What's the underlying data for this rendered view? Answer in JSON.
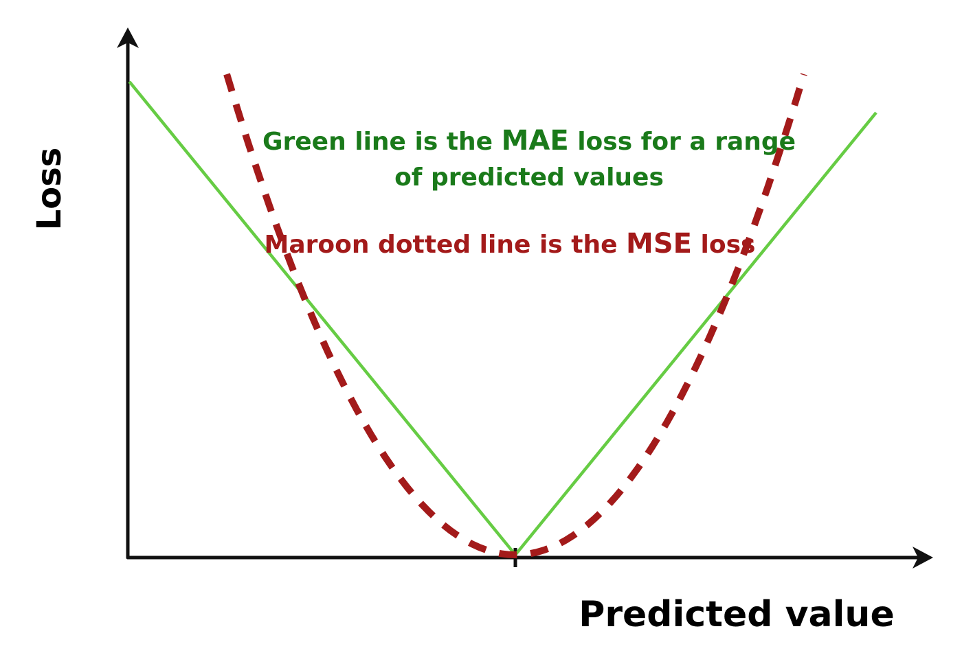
{
  "chart_data": {
    "type": "line",
    "xlabel": "Predicted value",
    "ylabel": "Loss",
    "grid": false,
    "ticks": {
      "x_marks": 1,
      "y_marks": 0
    },
    "annotations": {
      "mae_line1_a": "Green line is the ",
      "mae_line1_bold": "MAE",
      "mae_line1_b": " loss for a range",
      "mae_line2": "of predicted values",
      "mse_a": "Maroon dotted line is the ",
      "mse_bold": "MSE",
      "mse_b": " loss"
    },
    "x": [
      -1,
      -0.75,
      -0.5,
      -0.25,
      0,
      0.25,
      0.5,
      0.75,
      1
    ],
    "series": [
      {
        "key": "mae",
        "style": "solid",
        "color": "#66cc44",
        "values": [
          1,
          0.75,
          0.5,
          0.25,
          0,
          0.25,
          0.5,
          0.75,
          1
        ]
      },
      {
        "key": "mse",
        "style": "dashed",
        "color": "#a31a1a",
        "values": [
          1,
          0.5625,
          0.25,
          0.0625,
          0,
          0.0625,
          0.25,
          0.5625,
          1
        ]
      }
    ]
  },
  "colors": {
    "green_text": "#1a7a1a",
    "maroon_text": "#a31a1a",
    "axis": "#111111"
  }
}
